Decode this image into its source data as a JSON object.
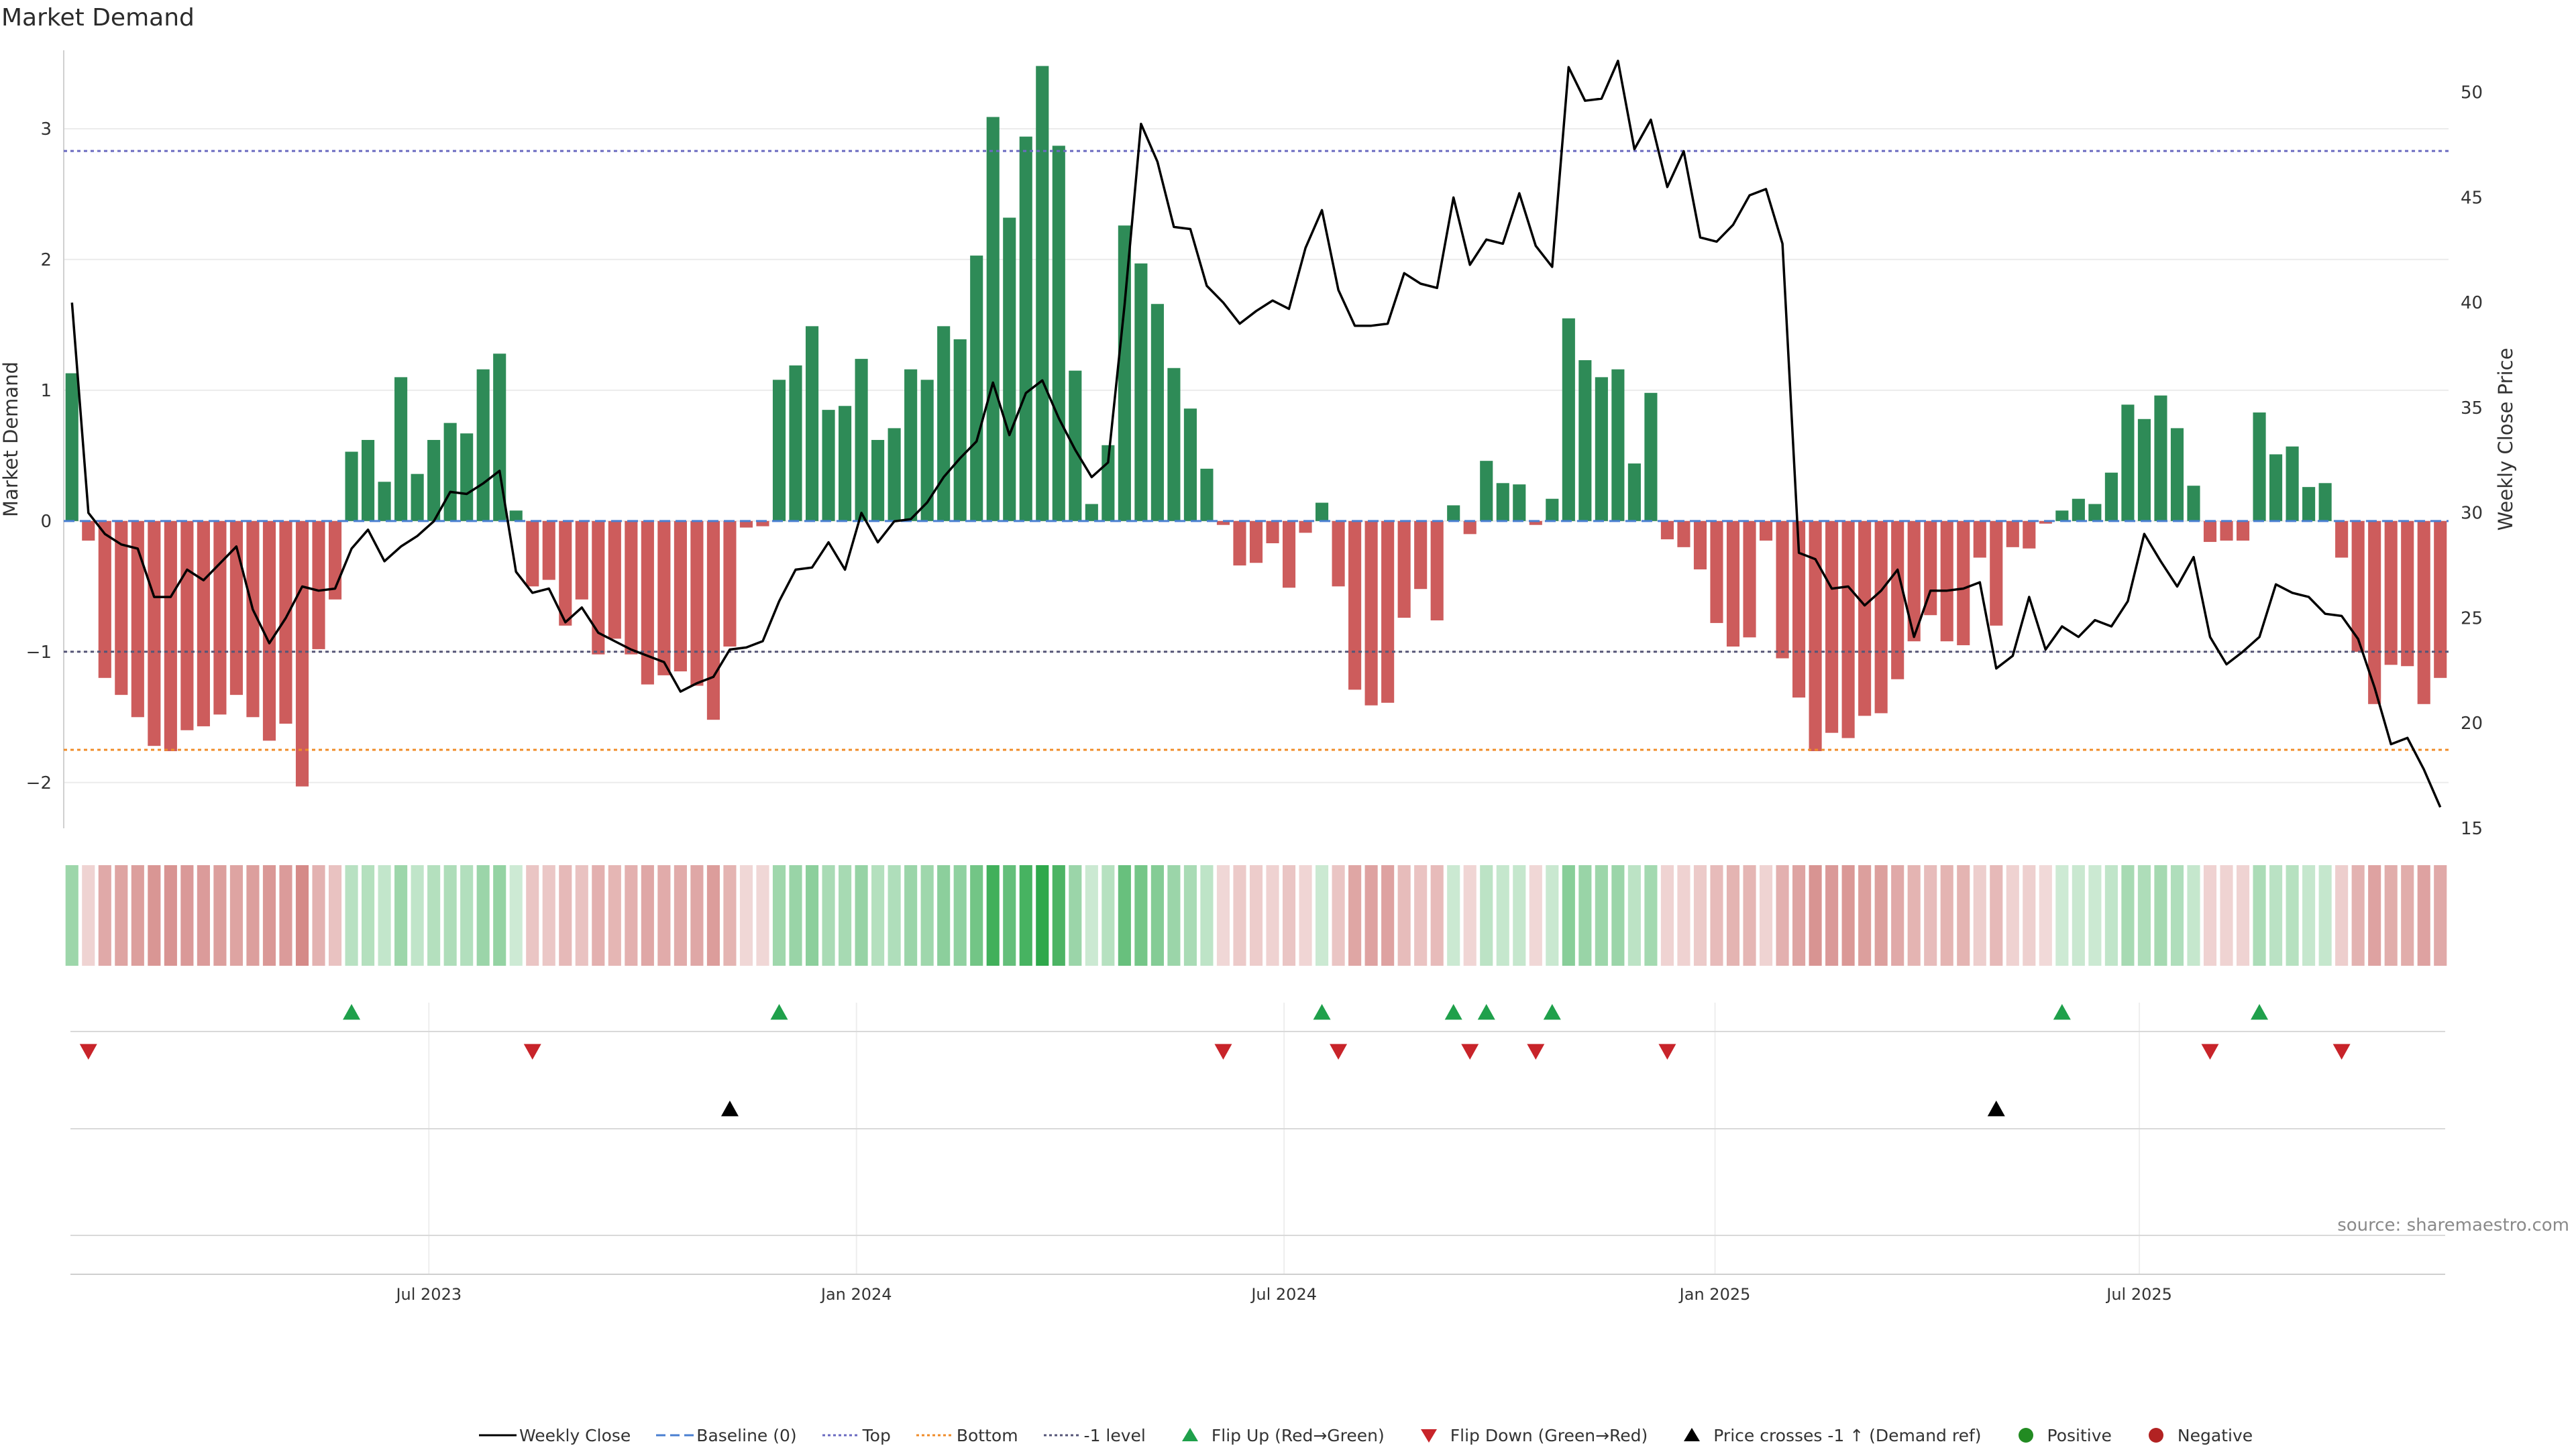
{
  "title": "Market Demand",
  "source": "source: sharemaestro.com",
  "colors": {
    "positive": "#2e8b57",
    "negative": "#cd5c5c",
    "price": "#000000",
    "baseline": "#4a7fd1",
    "top": "#6a6ac0",
    "bottom": "#f08c28",
    "minus1": "#555577",
    "flip_up": "#1fa04b",
    "flip_down": "#c8242a",
    "cross": "#000000"
  },
  "chart_data": {
    "type": "bar",
    "title": "Market Demand",
    "ylabel": "Market Demand",
    "y2label": "Weekly Close Price",
    "ylim": [
      -2.35,
      3.6
    ],
    "y2lim": [
      15,
      52
    ],
    "yticks": [
      "3",
      "2",
      "1",
      "0",
      "−1",
      "−2"
    ],
    "yticks_values": [
      3,
      2,
      1,
      0,
      -1,
      -2
    ],
    "y2ticks": [
      "50",
      "45",
      "40",
      "35",
      "30",
      "25",
      "20",
      "15"
    ],
    "y2ticks_values": [
      50,
      45,
      40,
      35,
      30,
      25,
      20,
      15
    ],
    "x_start": "2023-02-27",
    "x_step_days": 7,
    "xticks": [
      {
        "label": "Jul 2023",
        "week": 21.7
      },
      {
        "label": "Jan 2024",
        "week": 47.7
      },
      {
        "label": "Jul 2024",
        "week": 73.7
      },
      {
        "label": "Jan 2025",
        "week": 99.9
      },
      {
        "label": "Jul 2025",
        "week": 125.7
      }
    ],
    "reference_lines": [
      {
        "name": "Baseline (0)",
        "value": 0
      },
      {
        "name": "Top",
        "value": 2.83
      },
      {
        "name": "Bottom",
        "value": -1.75
      },
      {
        "name": "-1 level",
        "value": -1.0
      }
    ],
    "series": [
      {
        "name": "Market Demand",
        "values": [
          1.13,
          -0.15,
          -1.2,
          -1.33,
          -1.5,
          -1.72,
          -1.76,
          -1.6,
          -1.57,
          -1.48,
          -1.33,
          -1.5,
          -1.68,
          -1.55,
          -2.03,
          -0.98,
          -0.6,
          0.53,
          0.62,
          0.3,
          1.1,
          0.36,
          0.62,
          0.75,
          0.67,
          1.16,
          1.28,
          0.08,
          -0.5,
          -0.45,
          -0.8,
          -0.6,
          -1.02,
          -0.9,
          -1.02,
          -1.25,
          -1.18,
          -1.15,
          -1.26,
          -1.52,
          -0.96,
          -0.05,
          -0.04,
          1.08,
          1.19,
          1.49,
          0.85,
          0.88,
          1.24,
          0.62,
          0.71,
          1.16,
          1.08,
          1.49,
          1.39,
          2.03,
          3.09,
          2.32,
          2.94,
          3.48,
          2.87,
          1.15,
          0.13,
          0.58,
          2.26,
          1.97,
          1.66,
          1.17,
          0.86,
          0.4,
          -0.03,
          -0.34,
          -0.32,
          -0.17,
          -0.51,
          -0.09,
          0.14,
          -0.5,
          -1.29,
          -1.41,
          -1.39,
          -0.74,
          -0.52,
          -0.76,
          0.12,
          -0.1,
          0.46,
          0.29,
          0.28,
          -0.03,
          0.17,
          1.55,
          1.23,
          1.1,
          1.16,
          0.44,
          0.98,
          -0.14,
          -0.2,
          -0.37,
          -0.78,
          -0.96,
          -0.89,
          -0.15,
          -1.05,
          -1.35,
          -1.76,
          -1.62,
          -1.66,
          -1.49,
          -1.47,
          -1.21,
          -0.92,
          -0.72,
          -0.92,
          -0.95,
          -0.28,
          -0.8,
          -0.2,
          -0.21,
          -0.02,
          0.08,
          0.17,
          0.13,
          0.37,
          0.89,
          0.78,
          0.96,
          0.71,
          0.27,
          -0.16,
          -0.15,
          -0.15,
          0.83,
          0.51,
          0.57,
          0.26,
          0.29,
          -0.28,
          -1.0,
          -1.4,
          -1.1,
          -1.11,
          -1.4,
          -1.2
        ]
      },
      {
        "name": "Weekly Close",
        "values": [
          40.0,
          30.0,
          29.0,
          28.5,
          28.3,
          26.0,
          26.0,
          27.3,
          26.8,
          27.6,
          28.4,
          25.4,
          23.8,
          25.0,
          26.5,
          26.3,
          26.4,
          28.3,
          29.2,
          27.7,
          28.4,
          28.9,
          29.6,
          31.0,
          30.9,
          31.4,
          32.0,
          27.2,
          26.2,
          26.4,
          24.8,
          25.5,
          24.3,
          23.9,
          23.5,
          23.2,
          22.9,
          21.5,
          21.9,
          22.2,
          23.5,
          23.6,
          23.9,
          25.8,
          27.3,
          27.4,
          28.6,
          27.3,
          30.0,
          28.6,
          29.6,
          29.7,
          30.5,
          31.7,
          32.6,
          33.4,
          36.2,
          33.7,
          35.7,
          36.3,
          34.5,
          33.0,
          31.7,
          32.4,
          39.9,
          48.5,
          46.7,
          43.6,
          43.5,
          40.8,
          40.0,
          39.0,
          39.6,
          40.1,
          39.7,
          42.6,
          44.4,
          40.6,
          38.9,
          38.9,
          39.0,
          41.4,
          40.9,
          40.7,
          45.0,
          41.8,
          43.0,
          42.8,
          45.2,
          42.7,
          41.7,
          51.2,
          49.6,
          49.7,
          51.5,
          47.3,
          48.7,
          45.5,
          47.2,
          43.1,
          42.9,
          43.7,
          45.1,
          45.4,
          42.8,
          28.1,
          27.8,
          26.4,
          26.5,
          25.6,
          26.3,
          27.3,
          24.1,
          26.3,
          26.3,
          26.4,
          26.7,
          22.6,
          23.2,
          26.0,
          23.5,
          24.6,
          24.1,
          24.9,
          24.6,
          25.8,
          29.0,
          27.7,
          26.5,
          27.9,
          24.1,
          22.8,
          23.4,
          24.1,
          26.6,
          26.2,
          26.0,
          25.2,
          25.1,
          24.0,
          21.7,
          19.0,
          19.3,
          17.8,
          16.0
        ]
      },
      {
        "name": "Flip Up (Red→Green)",
        "weeks": [
          17,
          43,
          76,
          84,
          86,
          90,
          121,
          133
        ]
      },
      {
        "name": "Flip Down (Green→Red)",
        "weeks": [
          1,
          28,
          70,
          77,
          85,
          89,
          97,
          130,
          138
        ]
      },
      {
        "name": "Price crosses -1 ↑ (Demand ref)",
        "weeks": [
          40,
          117
        ]
      }
    ]
  },
  "legend": [
    {
      "label": "Weekly Close",
      "kind": "line-solid"
    },
    {
      "label": "Baseline (0)",
      "kind": "line-dash-baseline"
    },
    {
      "label": "Top",
      "kind": "line-dot-top"
    },
    {
      "label": "Bottom",
      "kind": "line-dot-bottom"
    },
    {
      "label": "-1 level",
      "kind": "line-dot-minus1"
    },
    {
      "label": "Flip Up (Red→Green)",
      "kind": "tri-up-green"
    },
    {
      "label": "Flip Down (Green→Red)",
      "kind": "tri-down-red"
    },
    {
      "label": "Price crosses -1 ↑ (Demand ref)",
      "kind": "tri-up-black"
    },
    {
      "label": "Positive",
      "kind": "dot-green"
    },
    {
      "label": "Negative",
      "kind": "dot-red"
    }
  ]
}
